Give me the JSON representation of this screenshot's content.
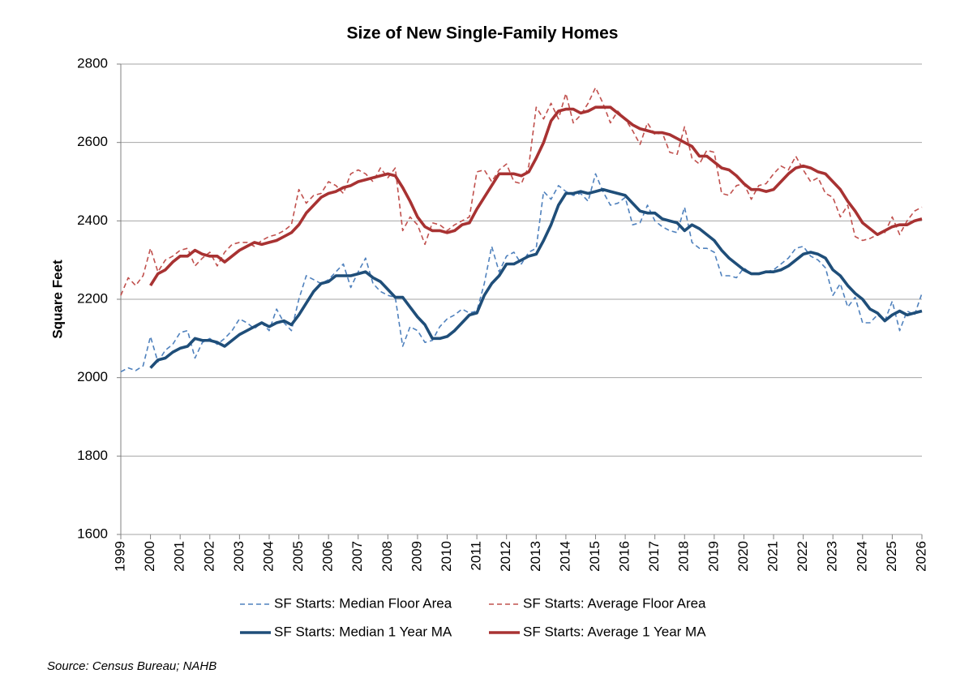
{
  "chart_data": {
    "type": "line",
    "title": "Size of New Single-Family Homes",
    "y_label": "Square Feet",
    "source": "Source: Census Bureau; NAHB",
    "xlim": [
      1999,
      2026
    ],
    "xticks": [
      1999,
      2000,
      2001,
      2002,
      2003,
      2004,
      2005,
      2006,
      2007,
      2008,
      2009,
      2010,
      2011,
      2012,
      2013,
      2014,
      2015,
      2016,
      2017,
      2018,
      2019,
      2020,
      2021,
      2022,
      2023,
      2024,
      2025,
      2026
    ],
    "ylim": [
      1600,
      2800
    ],
    "yticks": [
      1600,
      1800,
      2000,
      2200,
      2400,
      2600,
      2800
    ],
    "grid": true,
    "legend": "bottom",
    "x": [
      1999,
      1999.25,
      1999.5,
      1999.75,
      2000,
      2000.25,
      2000.5,
      2000.75,
      2001,
      2001.25,
      2001.5,
      2001.75,
      2002,
      2002.25,
      2002.5,
      2002.75,
      2003,
      2003.25,
      2003.5,
      2003.75,
      2004,
      2004.25,
      2004.5,
      2004.75,
      2005,
      2005.25,
      2005.5,
      2005.75,
      2006,
      2006.25,
      2006.5,
      2006.75,
      2007,
      2007.25,
      2007.5,
      2007.75,
      2008,
      2008.25,
      2008.5,
      2008.75,
      2009,
      2009.25,
      2009.5,
      2009.75,
      2010,
      2010.25,
      2010.5,
      2010.75,
      2011,
      2011.25,
      2011.5,
      2011.75,
      2012,
      2012.25,
      2012.5,
      2012.75,
      2013,
      2013.25,
      2013.5,
      2013.75,
      2014,
      2014.25,
      2014.5,
      2014.75,
      2015,
      2015.25,
      2015.5,
      2015.75,
      2016,
      2016.25,
      2016.5,
      2016.75,
      2017,
      2017.25,
      2017.5,
      2017.75,
      2018,
      2018.25,
      2018.5,
      2018.75,
      2019,
      2019.25,
      2019.5,
      2019.75,
      2020,
      2020.25,
      2020.5,
      2020.75,
      2021,
      2021.25,
      2021.5,
      2021.75,
      2022,
      2022.25,
      2022.5,
      2022.75,
      2023,
      2023.25,
      2023.5,
      2023.75,
      2024,
      2024.25,
      2024.5,
      2024.75,
      2025,
      2025.25,
      2025.5,
      2025.75,
      2026
    ],
    "series": [
      {
        "name": "SF Starts: Median Floor Area",
        "color": "#4f81bd",
        "style": "dashed",
        "values": [
          2015,
          2025,
          2018,
          2030,
          2105,
          2040,
          2070,
          2085,
          2115,
          2120,
          2050,
          2090,
          2100,
          2085,
          2100,
          2120,
          2150,
          2140,
          2125,
          2140,
          2120,
          2175,
          2140,
          2120,
          2200,
          2260,
          2250,
          2240,
          2250,
          2270,
          2290,
          2230,
          2270,
          2305,
          2240,
          2220,
          2210,
          2205,
          2080,
          2130,
          2120,
          2090,
          2095,
          2130,
          2150,
          2160,
          2175,
          2165,
          2170,
          2240,
          2335,
          2270,
          2310,
          2320,
          2290,
          2320,
          2330,
          2475,
          2455,
          2490,
          2475,
          2465,
          2470,
          2450,
          2520,
          2475,
          2440,
          2445,
          2460,
          2390,
          2395,
          2440,
          2400,
          2385,
          2375,
          2370,
          2435,
          2345,
          2330,
          2330,
          2320,
          2260,
          2260,
          2255,
          2280,
          2265,
          2265,
          2270,
          2275,
          2290,
          2305,
          2330,
          2335,
          2310,
          2300,
          2280,
          2210,
          2240,
          2180,
          2205,
          2140,
          2140,
          2160,
          2145,
          2195,
          2120,
          2170,
          2160,
          2215
        ]
      },
      {
        "name": "SF Starts: Average Floor Area",
        "color": "#c0504d",
        "style": "dashed",
        "values": [
          2210,
          2255,
          2235,
          2260,
          2330,
          2270,
          2300,
          2310,
          2325,
          2330,
          2285,
          2305,
          2320,
          2285,
          2320,
          2340,
          2345,
          2345,
          2335,
          2350,
          2360,
          2365,
          2375,
          2390,
          2480,
          2445,
          2465,
          2470,
          2500,
          2490,
          2470,
          2520,
          2530,
          2520,
          2500,
          2535,
          2510,
          2535,
          2375,
          2410,
          2390,
          2340,
          2395,
          2390,
          2375,
          2390,
          2400,
          2410,
          2525,
          2530,
          2500,
          2530,
          2545,
          2500,
          2495,
          2540,
          2690,
          2660,
          2700,
          2660,
          2725,
          2650,
          2670,
          2700,
          2740,
          2700,
          2650,
          2680,
          2660,
          2630,
          2595,
          2650,
          2620,
          2625,
          2575,
          2570,
          2640,
          2560,
          2545,
          2580,
          2575,
          2470,
          2465,
          2490,
          2495,
          2455,
          2490,
          2495,
          2520,
          2540,
          2530,
          2565,
          2530,
          2500,
          2510,
          2470,
          2460,
          2410,
          2440,
          2360,
          2350,
          2355,
          2365,
          2370,
          2410,
          2365,
          2400,
          2425,
          2435
        ]
      },
      {
        "name": "SF Starts: Median 1 Year MA",
        "color": "#1f4e79",
        "style": "solid",
        "values": [
          null,
          null,
          null,
          null,
          2025,
          2045,
          2050,
          2065,
          2075,
          2080,
          2100,
          2095,
          2095,
          2090,
          2080,
          2095,
          2110,
          2120,
          2130,
          2140,
          2130,
          2140,
          2145,
          2135,
          2160,
          2190,
          2220,
          2240,
          2245,
          2260,
          2260,
          2260,
          2265,
          2270,
          2255,
          2245,
          2225,
          2205,
          2205,
          2180,
          2155,
          2135,
          2100,
          2100,
          2105,
          2120,
          2140,
          2160,
          2165,
          2210,
          2240,
          2260,
          2290,
          2290,
          2300,
          2310,
          2315,
          2350,
          2390,
          2440,
          2470,
          2470,
          2475,
          2470,
          2475,
          2480,
          2475,
          2470,
          2465,
          2445,
          2425,
          2420,
          2420,
          2405,
          2400,
          2395,
          2375,
          2390,
          2380,
          2365,
          2350,
          2325,
          2305,
          2290,
          2275,
          2265,
          2265,
          2270,
          2270,
          2275,
          2285,
          2300,
          2315,
          2320,
          2315,
          2305,
          2275,
          2260,
          2235,
          2215,
          2200,
          2175,
          2165,
          2145,
          2160,
          2170,
          2160,
          2165,
          2170
        ]
      },
      {
        "name": "SF Starts: Average 1 Year MA",
        "color": "#a83232",
        "style": "solid",
        "values": [
          null,
          null,
          null,
          null,
          2235,
          2265,
          2275,
          2295,
          2310,
          2310,
          2325,
          2315,
          2310,
          2310,
          2295,
          2310,
          2325,
          2335,
          2345,
          2340,
          2345,
          2350,
          2360,
          2370,
          2390,
          2420,
          2440,
          2460,
          2470,
          2475,
          2485,
          2490,
          2500,
          2505,
          2510,
          2515,
          2520,
          2515,
          2485,
          2450,
          2410,
          2385,
          2375,
          2375,
          2370,
          2375,
          2390,
          2395,
          2430,
          2460,
          2490,
          2520,
          2520,
          2520,
          2515,
          2525,
          2560,
          2600,
          2655,
          2680,
          2685,
          2685,
          2675,
          2680,
          2690,
          2690,
          2690,
          2675,
          2660,
          2645,
          2635,
          2630,
          2625,
          2625,
          2620,
          2610,
          2600,
          2590,
          2565,
          2565,
          2550,
          2535,
          2530,
          2515,
          2495,
          2480,
          2480,
          2475,
          2480,
          2500,
          2520,
          2535,
          2540,
          2535,
          2525,
          2520,
          2500,
          2480,
          2450,
          2425,
          2395,
          2380,
          2365,
          2375,
          2385,
          2390,
          2390,
          2400,
          2405
        ]
      }
    ]
  }
}
